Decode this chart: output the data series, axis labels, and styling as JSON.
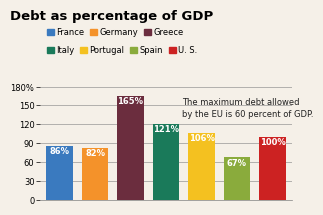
{
  "title": "Debt as percentage of GDP",
  "countries": [
    "France",
    "Germany",
    "Greece",
    "Italy",
    "Portugal",
    "Spain",
    "U. S."
  ],
  "values": [
    86,
    82,
    165,
    121,
    106,
    67,
    100
  ],
  "colors": [
    "#3a7abf",
    "#f4922a",
    "#6b2d3e",
    "#1a7a5a",
    "#f4c120",
    "#8aab3c",
    "#cc2222"
  ],
  "labels": [
    "86%",
    "82%",
    "165%",
    "121%",
    "106%",
    "67%",
    "100%"
  ],
  "legend_row1": [
    {
      "label": "France",
      "color": "#3a7abf"
    },
    {
      "label": "Germany",
      "color": "#f4922a"
    },
    {
      "label": "Greece",
      "color": "#6b2d3e"
    }
  ],
  "legend_row2": [
    {
      "label": "Italy",
      "color": "#1a7a5a"
    },
    {
      "label": "Portugal",
      "color": "#f4c120"
    },
    {
      "label": "Spain",
      "color": "#8aab3c"
    },
    {
      "label": "U. S.",
      "color": "#cc2222"
    }
  ],
  "ylim": [
    0,
    185
  ],
  "yticks": [
    0,
    30,
    60,
    90,
    120,
    150,
    180
  ],
  "ytick_labels": [
    "0",
    "30",
    "60",
    "90",
    "120",
    "150",
    "180%"
  ],
  "annotation": "The maximum debt allowed\nby the EU is 60 percent of GDP.",
  "background_color": "#f5f0e8",
  "title_fontsize": 9.5,
  "bar_label_fontsize": 6,
  "legend_fontsize": 6,
  "annotation_fontsize": 6,
  "ytick_fontsize": 6
}
